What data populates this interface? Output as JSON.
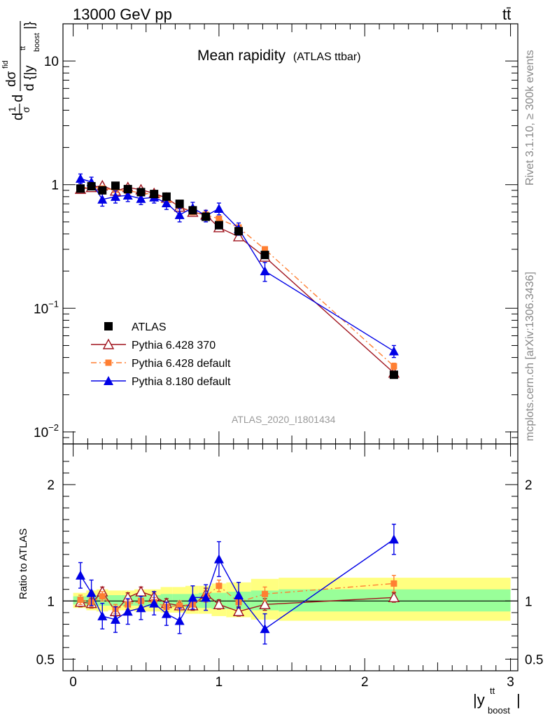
{
  "header": {
    "energy_label": "13000 GeV pp",
    "process_label": "tt̄"
  },
  "side_labels": {
    "rivet": "Rivet 3.1.10, ≥ 300k events",
    "mcplots": "mcplots.cern.ch [arXiv:1306.3436]"
  },
  "chart_data": [
    {
      "type": "scatter",
      "panel": "main",
      "title": "Mean rapidity",
      "subtitle": "(ATLAS ttbar)",
      "analysis_label": "ATLAS_2020_I1801434",
      "ylabel": "dσ/d|y_boost^tt| (1/σ)",
      "ylabel_parts": {
        "one": "1",
        "sigma": "σ",
        "d": "d",
        "dsigma": "dσ",
        "fid": "fid",
        "dabsy": "d {|y",
        "tt": "tt",
        "boost": "boost",
        "close": "|}"
      },
      "yscale": "log",
      "ylim": [
        0.008,
        20
      ],
      "xlim": [
        -0.07,
        3.05
      ],
      "y_ticks": [
        {
          "value": 0.01,
          "label_base": "10",
          "label_exp": "−2"
        },
        {
          "value": 0.1,
          "label_base": "10",
          "label_exp": "−1"
        },
        {
          "value": 1,
          "label_base": "1",
          "label_exp": ""
        },
        {
          "value": 10,
          "label_base": "10",
          "label_exp": ""
        }
      ],
      "legend_position": "lower-left",
      "x": [
        0.05,
        0.125,
        0.2,
        0.29,
        0.375,
        0.465,
        0.555,
        0.64,
        0.73,
        0.82,
        0.91,
        1.0,
        1.135,
        1.315,
        2.2
      ],
      "series": [
        {
          "name": "ATLAS",
          "marker": "square",
          "color": "#000000",
          "line": "none",
          "values": [
            0.93,
            0.97,
            0.9,
            0.98,
            0.92,
            0.87,
            0.84,
            0.8,
            0.7,
            0.62,
            0.55,
            0.47,
            0.42,
            0.27,
            0.029
          ],
          "errors": [
            0.03,
            0.03,
            0.03,
            0.03,
            0.03,
            0.03,
            0.03,
            0.03,
            0.03,
            0.025,
            0.025,
            0.02,
            0.02,
            0.012,
            0.0015
          ]
        },
        {
          "name": "Pythia 6.428 370",
          "marker": "open-triangle",
          "color": "#a0141e",
          "line": "solid",
          "values": [
            0.92,
            0.95,
            0.98,
            0.89,
            0.95,
            0.91,
            0.85,
            0.78,
            0.66,
            0.6,
            0.57,
            0.45,
            0.38,
            0.26,
            0.03
          ],
          "errors": [
            0.04,
            0.04,
            0.04,
            0.04,
            0.04,
            0.04,
            0.04,
            0.04,
            0.03,
            0.03,
            0.03,
            0.02,
            0.02,
            0.015,
            0.002
          ]
        },
        {
          "name": "Pythia 6.428 default",
          "marker": "filled-square-small",
          "color": "#ff7f32",
          "line": "dashdot",
          "values": [
            0.94,
            0.96,
            0.93,
            0.91,
            0.89,
            0.86,
            0.83,
            0.76,
            0.67,
            0.6,
            0.57,
            0.53,
            0.45,
            0.3,
            0.034
          ],
          "errors": [
            0.03,
            0.03,
            0.03,
            0.03,
            0.03,
            0.03,
            0.03,
            0.03,
            0.03,
            0.03,
            0.025,
            0.02,
            0.02,
            0.015,
            0.002
          ]
        },
        {
          "name": "Pythia 8.180 default",
          "marker": "filled-triangle",
          "color": "#0000e6",
          "line": "solid",
          "values": [
            1.12,
            1.05,
            0.76,
            0.8,
            0.82,
            0.77,
            0.79,
            0.71,
            0.57,
            0.65,
            0.56,
            0.64,
            0.44,
            0.2,
            0.045
          ],
          "errors": [
            0.1,
            0.1,
            0.09,
            0.09,
            0.09,
            0.08,
            0.08,
            0.08,
            0.07,
            0.07,
            0.06,
            0.07,
            0.05,
            0.035,
            0.005
          ]
        }
      ]
    },
    {
      "type": "scatter",
      "panel": "ratio",
      "ylabel": "Ratio to ATLAS",
      "xlabel": "|y_boost^tt|",
      "xlabel_parts": {
        "open": "|y",
        "tt": "tt",
        "boost": "boost",
        "close": "|"
      },
      "ylim": [
        0.4,
        2.35
      ],
      "xlim": [
        -0.07,
        3.05
      ],
      "y_ticks": [
        0.5,
        1,
        2
      ],
      "x_ticks": [
        0,
        1,
        2,
        3
      ],
      "reference_line": 1,
      "bands": [
        {
          "name": "ATLAS total uncertainty",
          "color": "#ffff80",
          "edges": [
            0,
            0.09,
            0.16,
            0.24,
            0.33,
            0.42,
            0.51,
            0.6,
            0.68,
            0.77,
            0.86,
            0.95,
            1.05,
            1.22,
            1.41,
            3.0
          ],
          "low": [
            0.94,
            0.92,
            0.91,
            0.92,
            0.92,
            0.91,
            0.91,
            0.9,
            0.9,
            0.89,
            0.89,
            0.87,
            0.86,
            0.84,
            0.83
          ],
          "high": [
            1.07,
            1.09,
            1.1,
            1.09,
            1.09,
            1.1,
            1.1,
            1.12,
            1.12,
            1.13,
            1.13,
            1.15,
            1.16,
            1.19,
            1.2
          ]
        },
        {
          "name": "ATLAS statistical uncertainty",
          "color": "#99ff99",
          "edges": [
            0,
            0.09,
            0.16,
            0.24,
            0.33,
            0.42,
            0.51,
            0.6,
            0.68,
            0.77,
            0.86,
            0.95,
            1.05,
            1.22,
            1.41,
            3.0
          ],
          "low": [
            0.97,
            0.96,
            0.96,
            0.96,
            0.96,
            0.96,
            0.95,
            0.95,
            0.95,
            0.94,
            0.94,
            0.93,
            0.93,
            0.92,
            0.91
          ],
          "high": [
            1.04,
            1.05,
            1.05,
            1.05,
            1.05,
            1.05,
            1.05,
            1.06,
            1.06,
            1.06,
            1.07,
            1.07,
            1.08,
            1.09,
            1.1
          ]
        }
      ],
      "x": [
        0.05,
        0.125,
        0.2,
        0.29,
        0.375,
        0.465,
        0.555,
        0.64,
        0.73,
        0.82,
        0.91,
        1.0,
        1.135,
        1.315,
        2.2
      ],
      "series": [
        {
          "name": "Pythia 6.428 370",
          "marker": "open-triangle",
          "color": "#a0141e",
          "line": "solid",
          "values": [
            0.99,
            0.98,
            1.08,
            0.91,
            1.03,
            1.08,
            1.04,
            0.98,
            0.96,
            0.96,
            1.06,
            0.97,
            0.91,
            0.97,
            1.03
          ],
          "errors": [
            0.04,
            0.04,
            0.04,
            0.04,
            0.04,
            0.04,
            0.04,
            0.04,
            0.04,
            0.04,
            0.05,
            0.04,
            0.04,
            0.05,
            0.04
          ]
        },
        {
          "name": "Pythia 6.428 default",
          "marker": "filled-square-small",
          "color": "#ff7f32",
          "line": "dashdot",
          "values": [
            1.01,
            0.99,
            1.04,
            0.93,
            0.97,
            1.0,
            0.99,
            0.95,
            0.96,
            0.97,
            1.04,
            1.13,
            0.99,
            1.06,
            1.15
          ],
          "errors": [
            0.04,
            0.04,
            0.04,
            0.04,
            0.04,
            0.04,
            0.04,
            0.04,
            0.04,
            0.04,
            0.05,
            0.05,
            0.05,
            0.06,
            0.07
          ]
        },
        {
          "name": "Pythia 8.180 default",
          "marker": "filled-triangle",
          "color": "#0000e6",
          "line": "solid",
          "values": [
            1.22,
            1.07,
            0.87,
            0.84,
            0.91,
            0.94,
            0.98,
            0.89,
            0.83,
            1.03,
            1.03,
            1.36,
            1.05,
            0.76,
            1.53
          ],
          "errors": [
            0.11,
            0.11,
            0.11,
            0.11,
            0.11,
            0.1,
            0.1,
            0.1,
            0.11,
            0.1,
            0.11,
            0.15,
            0.11,
            0.13,
            0.13
          ]
        }
      ]
    }
  ]
}
